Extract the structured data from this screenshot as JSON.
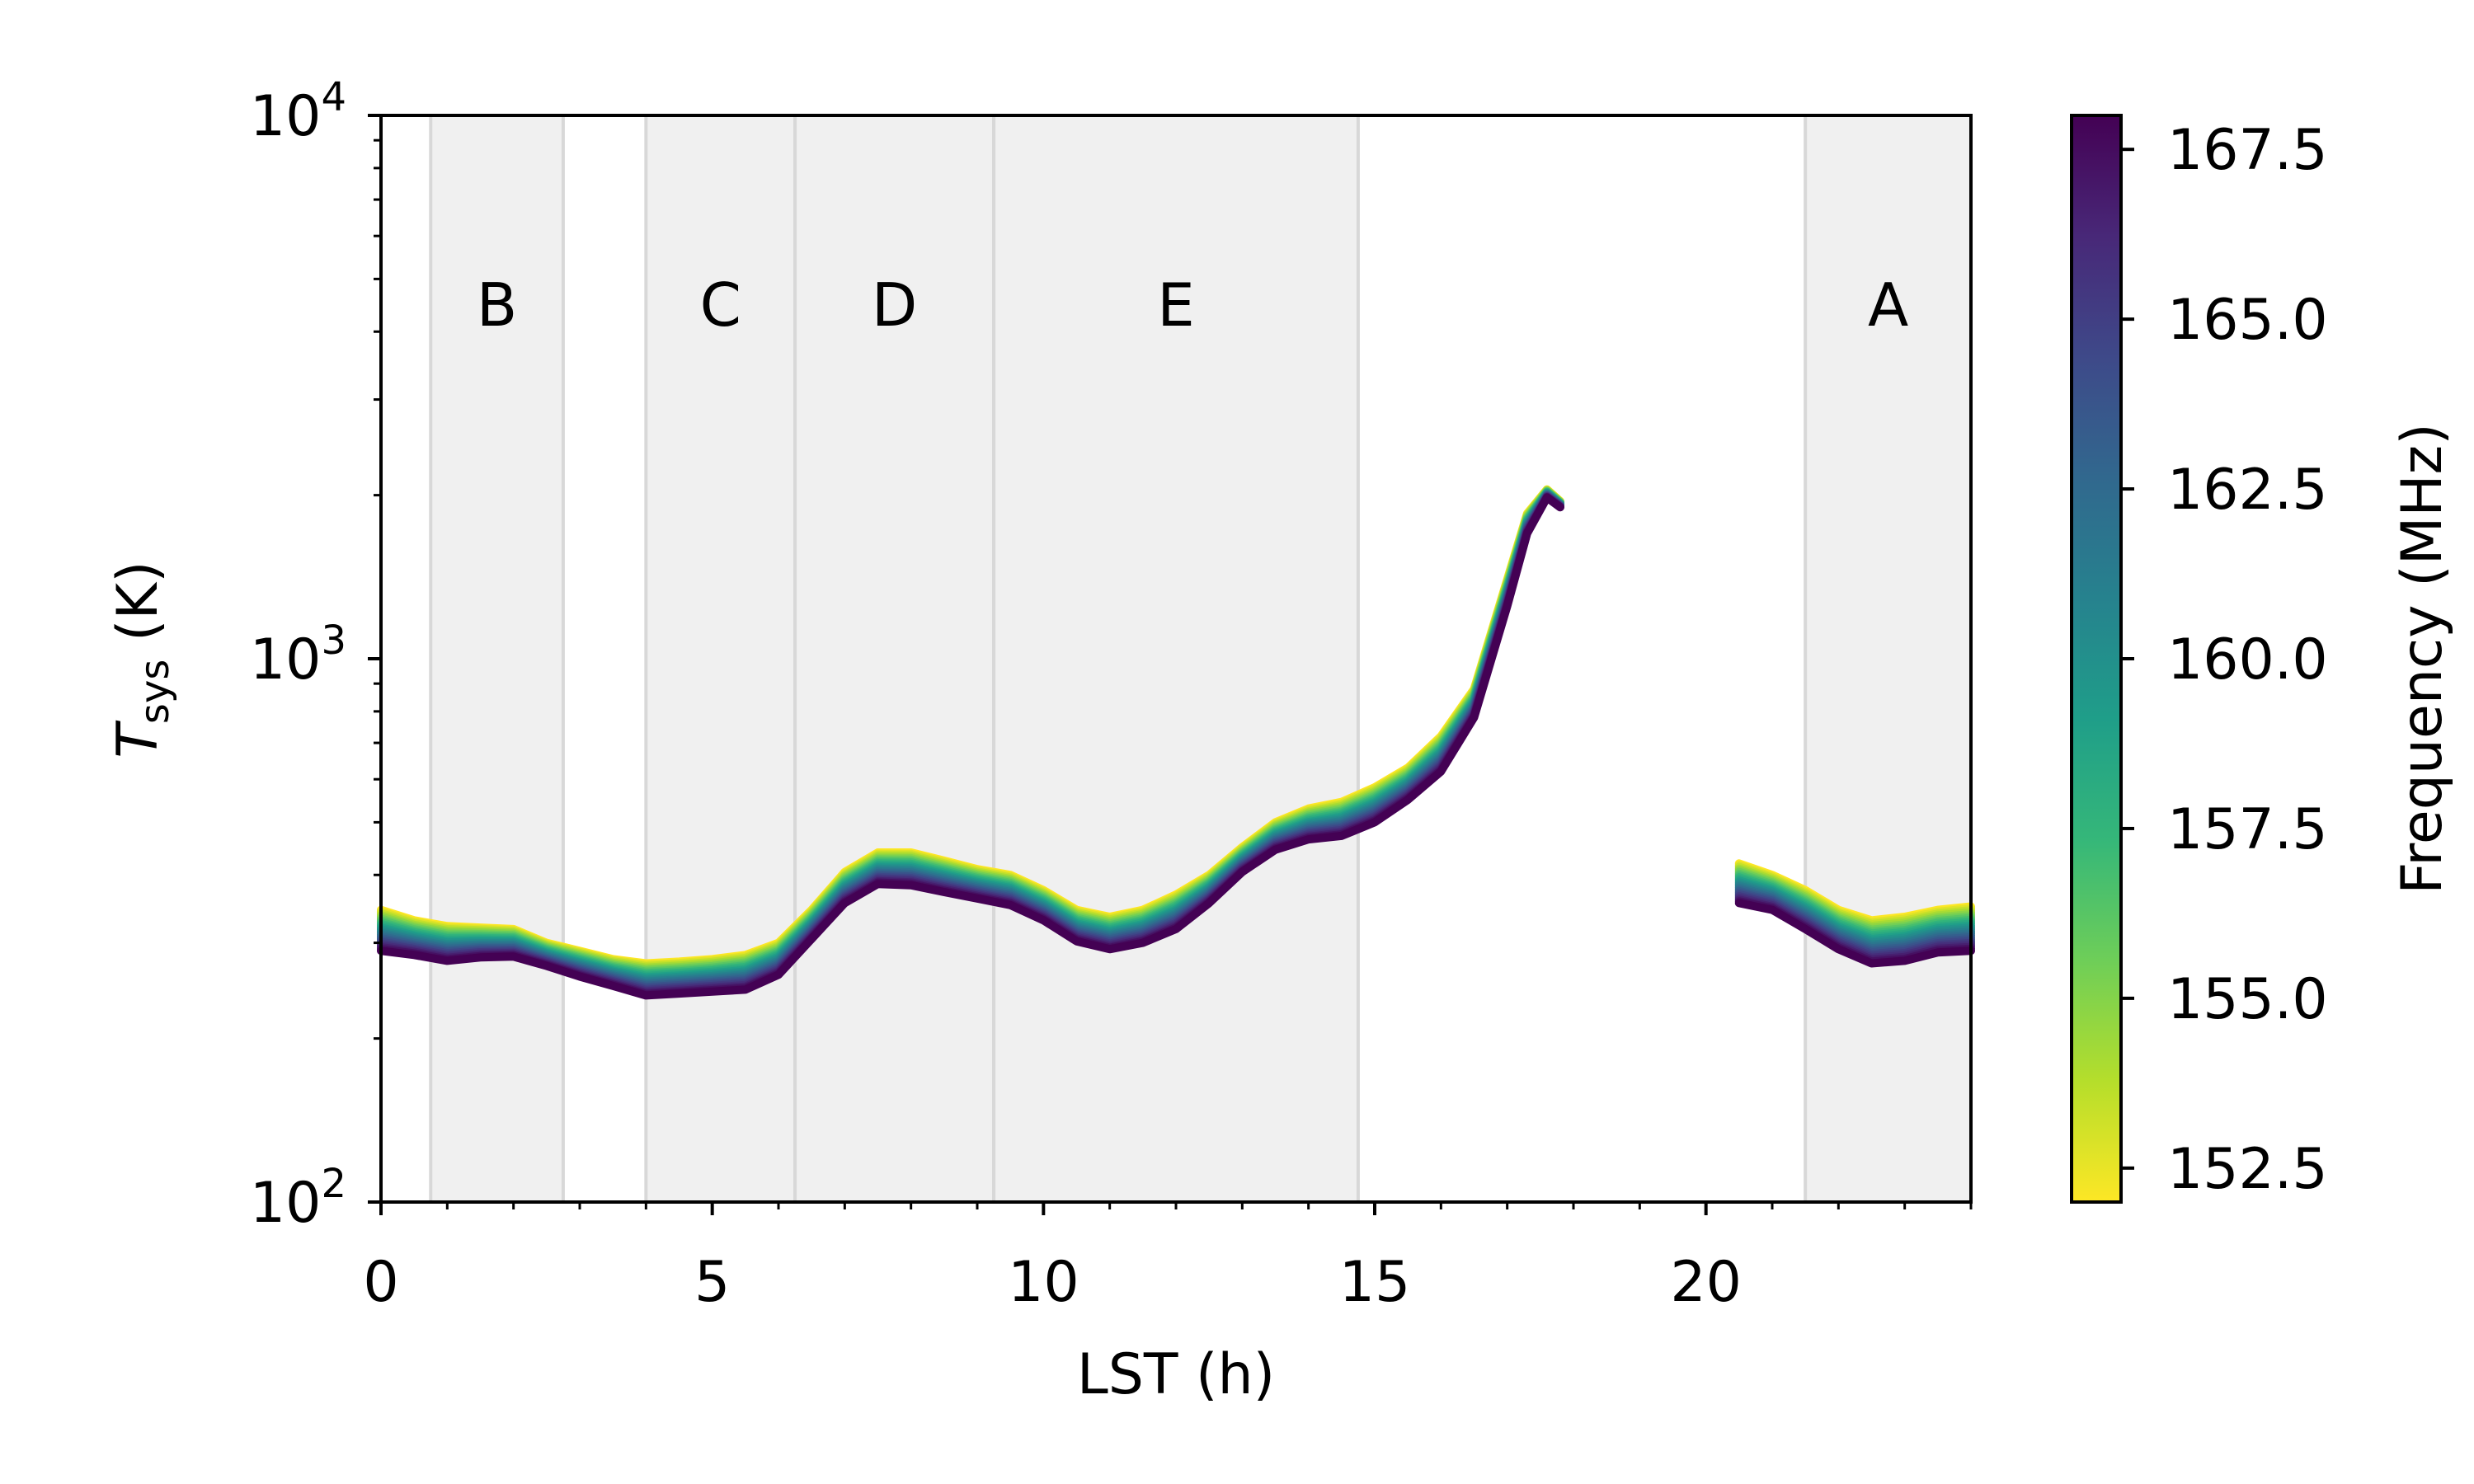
{
  "chart_data": {
    "type": "line",
    "xlabel": "LST (h)",
    "ylabel": {
      "main": "T",
      "sub": "sys",
      "unit": " (K)"
    },
    "xlim": [
      0,
      24
    ],
    "ylim": [
      100,
      10000
    ],
    "yscale": "log",
    "xticks": [
      0,
      5,
      10,
      15,
      20
    ],
    "yticks": [
      {
        "value": 100,
        "base": "10",
        "exp": "2"
      },
      {
        "value": 1000,
        "base": "10",
        "exp": "3"
      },
      {
        "value": 10000,
        "base": "10",
        "exp": "4"
      }
    ],
    "grid": false,
    "field_bands": [
      {
        "label": "B",
        "x0": 0.75,
        "x1": 2.75
      },
      {
        "label": "C",
        "x0": 4.0,
        "x1": 6.25
      },
      {
        "label": "D",
        "x0": 6.25,
        "x1": 9.25
      },
      {
        "label": "E",
        "x0": 9.25,
        "x1": 14.75
      },
      {
        "label": "A",
        "x0": 21.5,
        "x1": 24.0
      }
    ],
    "colorbar": {
      "label": "Frequency (MHz)",
      "range": [
        152.0,
        168.0
      ],
      "ticks": [
        "152.5",
        "155.0",
        "157.5",
        "160.0",
        "162.5",
        "165.0",
        "167.5"
      ],
      "tick_values": [
        152.5,
        155.0,
        157.5,
        160.0,
        162.5,
        165.0,
        167.5
      ],
      "colormap_stops": [
        "#fde725",
        "#b5de2b",
        "#6ece58",
        "#35b779",
        "#1f9e89",
        "#26828e",
        "#31688e",
        "#3e4989",
        "#482878",
        "#440154"
      ]
    },
    "series_segments": [
      {
        "x": [
          0.0,
          0.5,
          1.0,
          1.5,
          2.0,
          2.5,
          3.0,
          3.5,
          4.0,
          4.5,
          5.0,
          5.5,
          6.0,
          6.5,
          7.0,
          7.5,
          8.0,
          8.5,
          9.0,
          9.5,
          10.0,
          10.5,
          11.0,
          11.5,
          12.0,
          12.5,
          13.0,
          13.5,
          14.0,
          14.5,
          15.0,
          15.5,
          16.0,
          16.5,
          17.0,
          17.3,
          17.6,
          17.8
        ],
        "y_low": [
          290,
          285,
          278,
          282,
          283,
          272,
          260,
          250,
          240,
          242,
          244,
          246,
          262,
          305,
          355,
          385,
          383,
          372,
          362,
          352,
          330,
          302,
          292,
          300,
          318,
          355,
          405,
          445,
          465,
          472,
          500,
          550,
          620,
          780,
          1250,
          1700,
          1980,
          1900
        ],
        "y_high": [
          345,
          330,
          322,
          320,
          318,
          300,
          290,
          280,
          275,
          277,
          280,
          285,
          300,
          345,
          405,
          440,
          440,
          425,
          410,
          400,
          375,
          345,
          335,
          345,
          368,
          400,
          450,
          500,
          530,
          545,
          580,
          630,
          720,
          880,
          1400,
          1850,
          2050,
          1950
        ]
      },
      {
        "x": [
          20.5,
          21.0,
          21.5,
          22.0,
          22.5,
          23.0,
          23.5,
          24.0
        ],
        "y_low": [
          355,
          345,
          318,
          292,
          275,
          278,
          288,
          290
        ],
        "y_high": [
          420,
          400,
          375,
          345,
          330,
          335,
          345,
          350
        ]
      }
    ]
  }
}
